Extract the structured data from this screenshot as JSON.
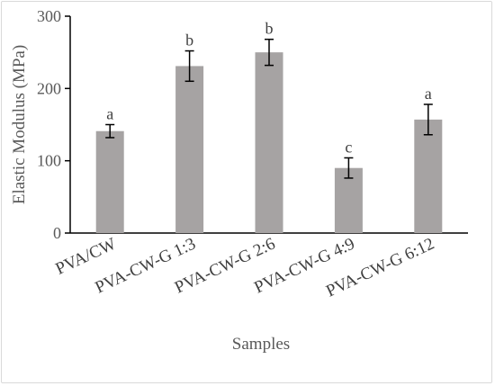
{
  "chart_data": {
    "type": "bar",
    "categories": [
      "PVA/CW",
      "PVA-CW-G 1:3",
      "PVA-CW-G 2:6",
      "PVA-CW-G 4:9",
      "PVA-CW-G 6:12"
    ],
    "values": [
      141,
      231,
      250,
      90,
      157
    ],
    "errors": [
      9,
      21,
      18,
      14,
      21
    ],
    "significance_letters": [
      "a",
      "b",
      "b",
      "c",
      "a"
    ],
    "xlabel": "Samples",
    "ylabel": "Elastic Modulus (MPa)",
    "ylim": [
      0,
      300
    ],
    "yticks": [
      0,
      100,
      200,
      300
    ],
    "grid": false,
    "colors": {
      "bar": "#a6a3a3",
      "error_bar": "#000000",
      "axis": "#000000"
    }
  }
}
